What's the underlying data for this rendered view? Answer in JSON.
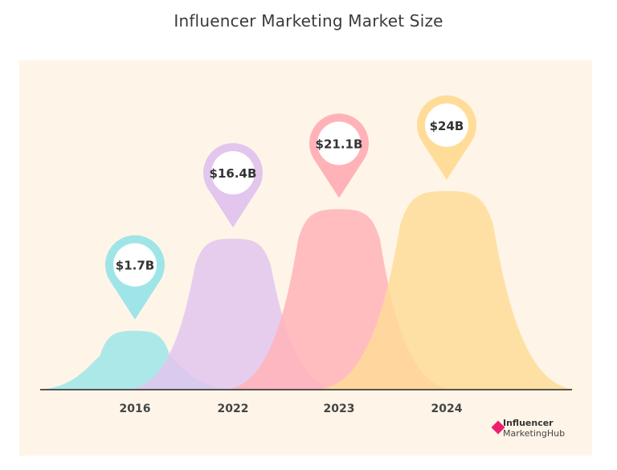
{
  "chart_data": {
    "type": "area",
    "title": "Influencer Marketing Market Size",
    "categories": [
      "2016",
      "2022",
      "2023",
      "2024"
    ],
    "values": [
      1.7,
      16.4,
      21.1,
      24
    ],
    "labels": [
      "$1.7B",
      "$16.4B",
      "$21.1B",
      "$24B"
    ],
    "colors": [
      "#9fe5e7",
      "#e2c6ee",
      "#ffb3b8",
      "#ffdc98"
    ],
    "grid": false,
    "legend": "none"
  },
  "logo": {
    "line1": "Influencer",
    "line2": "MarketingHub"
  }
}
